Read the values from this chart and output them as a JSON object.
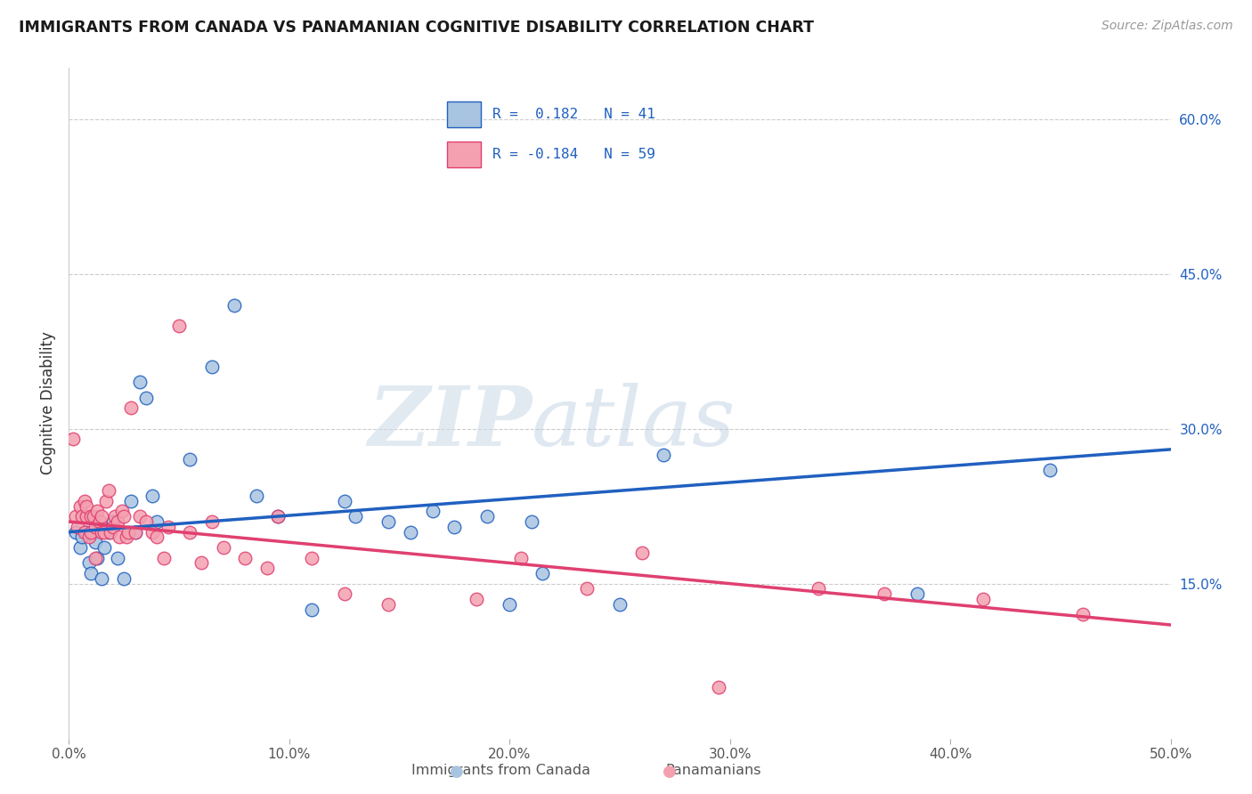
{
  "title": "IMMIGRANTS FROM CANADA VS PANAMANIAN COGNITIVE DISABILITY CORRELATION CHART",
  "source": "Source: ZipAtlas.com",
  "ylabel": "Cognitive Disability",
  "xlabel_blue": "Immigrants from Canada",
  "xlabel_pink": "Panamanians",
  "xlim": [
    0.0,
    0.5
  ],
  "ylim": [
    0.0,
    0.65
  ],
  "xticks": [
    0.0,
    0.1,
    0.2,
    0.3,
    0.4,
    0.5
  ],
  "yticks": [
    0.15,
    0.3,
    0.45,
    0.6
  ],
  "ytick_labels": [
    "15.0%",
    "30.0%",
    "45.0%",
    "60.0%"
  ],
  "xtick_labels": [
    "0.0%",
    "10.0%",
    "20.0%",
    "30.0%",
    "40.0%",
    "50.0%"
  ],
  "R_blue": 0.182,
  "N_blue": 41,
  "R_pink": -0.184,
  "N_pink": 59,
  "blue_color": "#a8c4e0",
  "pink_color": "#f4a0b0",
  "blue_line_color": "#2060c0",
  "pink_line_color": "#e04070",
  "grid_color": "#cccccc",
  "watermark_zip": "ZIP",
  "watermark_atlas": "atlas",
  "blue_scatter_x": [
    0.003,
    0.005,
    0.006,
    0.008,
    0.009,
    0.01,
    0.011,
    0.012,
    0.013,
    0.015,
    0.016,
    0.018,
    0.02,
    0.022,
    0.025,
    0.028,
    0.03,
    0.032,
    0.035,
    0.038,
    0.04,
    0.055,
    0.065,
    0.075,
    0.085,
    0.095,
    0.11,
    0.125,
    0.13,
    0.145,
    0.155,
    0.165,
    0.175,
    0.19,
    0.2,
    0.21,
    0.215,
    0.25,
    0.27,
    0.385,
    0.445
  ],
  "blue_scatter_y": [
    0.2,
    0.185,
    0.195,
    0.2,
    0.17,
    0.16,
    0.2,
    0.19,
    0.175,
    0.155,
    0.185,
    0.2,
    0.21,
    0.175,
    0.155,
    0.23,
    0.2,
    0.345,
    0.33,
    0.235,
    0.21,
    0.27,
    0.36,
    0.42,
    0.235,
    0.215,
    0.125,
    0.23,
    0.215,
    0.21,
    0.2,
    0.22,
    0.205,
    0.215,
    0.13,
    0.21,
    0.16,
    0.13,
    0.275,
    0.14,
    0.26
  ],
  "pink_scatter_x": [
    0.002,
    0.003,
    0.004,
    0.005,
    0.006,
    0.007,
    0.007,
    0.008,
    0.008,
    0.009,
    0.01,
    0.01,
    0.011,
    0.012,
    0.012,
    0.013,
    0.014,
    0.015,
    0.015,
    0.016,
    0.017,
    0.018,
    0.019,
    0.02,
    0.021,
    0.022,
    0.023,
    0.024,
    0.025,
    0.026,
    0.027,
    0.028,
    0.03,
    0.032,
    0.035,
    0.038,
    0.04,
    0.043,
    0.045,
    0.05,
    0.055,
    0.06,
    0.065,
    0.07,
    0.08,
    0.09,
    0.095,
    0.11,
    0.125,
    0.145,
    0.185,
    0.205,
    0.235,
    0.26,
    0.295,
    0.34,
    0.37,
    0.415,
    0.46
  ],
  "pink_scatter_y": [
    0.29,
    0.215,
    0.205,
    0.225,
    0.215,
    0.2,
    0.23,
    0.215,
    0.225,
    0.195,
    0.215,
    0.2,
    0.215,
    0.175,
    0.205,
    0.22,
    0.21,
    0.215,
    0.2,
    0.2,
    0.23,
    0.24,
    0.2,
    0.205,
    0.215,
    0.21,
    0.195,
    0.22,
    0.215,
    0.195,
    0.2,
    0.32,
    0.2,
    0.215,
    0.21,
    0.2,
    0.195,
    0.175,
    0.205,
    0.4,
    0.2,
    0.17,
    0.21,
    0.185,
    0.175,
    0.165,
    0.215,
    0.175,
    0.14,
    0.13,
    0.135,
    0.175,
    0.145,
    0.18,
    0.05,
    0.145,
    0.14,
    0.135,
    0.12
  ]
}
